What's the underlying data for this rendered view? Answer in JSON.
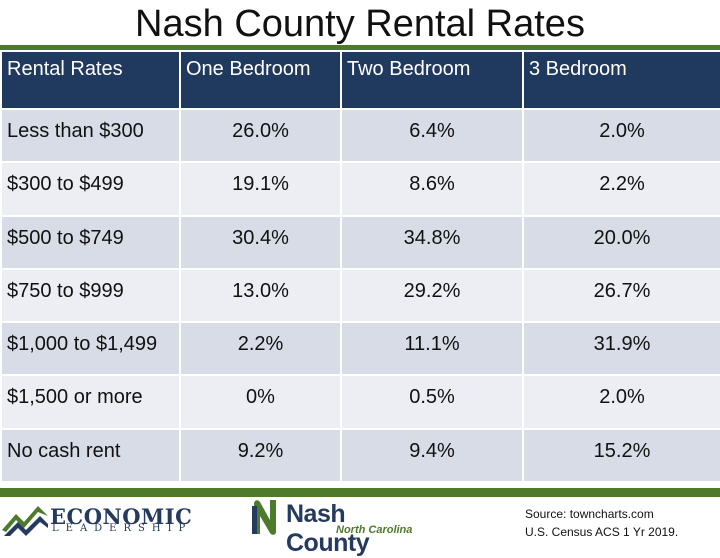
{
  "title": "Nash County Rental Rates",
  "table": {
    "headers": [
      "Rental Rates",
      "One Bedroom",
      "Two Bedroom",
      "3 Bedroom"
    ],
    "rows": [
      [
        "Less than $300",
        "26.0%",
        "6.4%",
        "2.0%"
      ],
      [
        "$300 to $499",
        "19.1%",
        "8.6%",
        "2.2%"
      ],
      [
        "$500 to $749",
        "30.4%",
        "34.8%",
        "20.0%"
      ],
      [
        "$750 to $999",
        "13.0%",
        "29.2%",
        "26.7%"
      ],
      [
        "$1,000 to $1,499",
        "2.2%",
        "11.1%",
        "31.9%"
      ],
      [
        "$1,500 or more",
        "0%",
        "0.5%",
        "2.0%"
      ],
      [
        "No cash rent",
        "9.2%",
        "9.4%",
        "15.2%"
      ]
    ]
  },
  "footer": {
    "economic_logo": {
      "name": "ECONOMIC",
      "sub": "LEADERSHIP"
    },
    "nash_logo": {
      "name": "Nash County",
      "sub": "North Carolina"
    },
    "source_line1": "Source: towncharts.com",
    "source_line2": "U.S. Census ACS 1 Yr 2019."
  },
  "colors": {
    "header_bg": "#1f3a5e",
    "accent_green": "#4e7a2c",
    "row_odd": "#d8dce6",
    "row_even": "#eceef3"
  }
}
